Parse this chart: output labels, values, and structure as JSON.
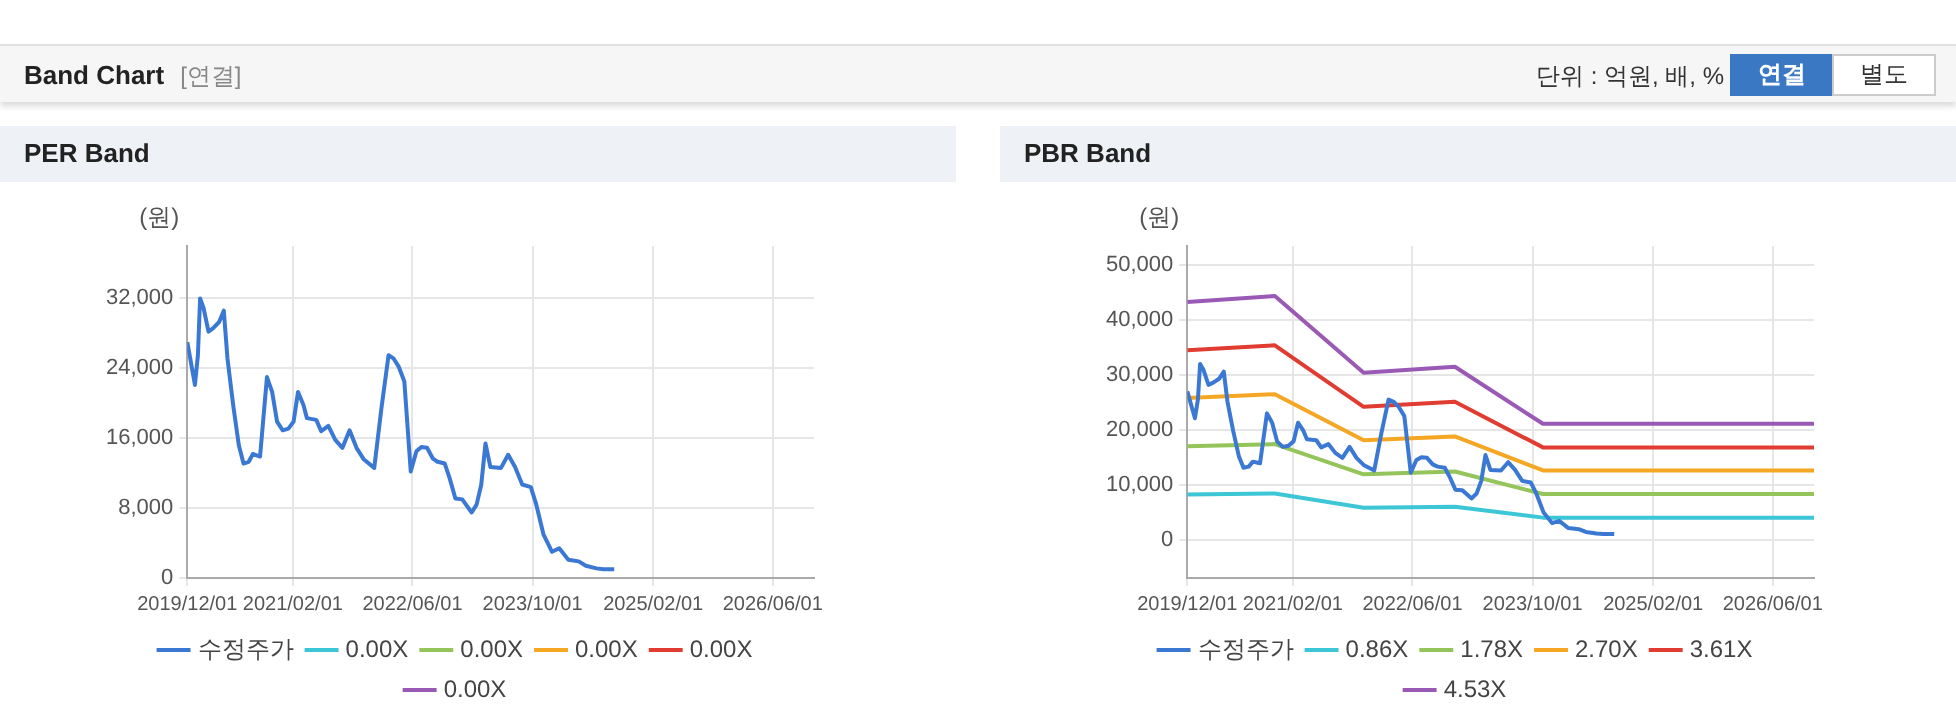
{
  "chart_data": [
    {
      "type": "other",
      "title": "Band Chart",
      "annotations": [
        "[연결]",
        "단위 : 억원, 배, %",
        "연결",
        "별도"
      ]
    },
    {
      "type": "line",
      "title": "PER Band",
      "ylabel": "(원)",
      "xlim": [
        "2019-12-01",
        "2026-11-15"
      ],
      "ylim": [
        0,
        38000
      ],
      "xticks": [
        {
          "value": "2019-12-01",
          "label": "2019/12/01"
        },
        {
          "value": "2021-02-01",
          "label": "2021/02/01"
        },
        {
          "value": "2022-06-01",
          "label": "2022/06/01"
        },
        {
          "value": "2023-10-01",
          "label": "2023/10/01"
        },
        {
          "value": "2025-02-01",
          "label": "2025/02/01"
        },
        {
          "value": "2026-06-01",
          "label": "2026/06/01"
        }
      ],
      "yticks": [
        0,
        {
          "value": 8000,
          "label": "8,000"
        },
        {
          "value": 16000,
          "label": "16,000"
        },
        {
          "value": 24000,
          "label": "24,000"
        },
        {
          "value": 32000,
          "label": "32,000"
        }
      ],
      "grid": true,
      "legend": "bottom",
      "marker": "none",
      "line_style": "solid",
      "x": [
        "2019-12-01",
        "2019-12-15",
        "2020-01-01",
        "2020-01-13",
        "2020-01-22",
        "2020-02-05",
        "2020-02-25",
        "2020-03-15",
        "2020-04-08",
        "2020-04-27",
        "2020-05-12",
        "2020-06-04",
        "2020-06-27",
        "2020-07-16",
        "2020-08-06",
        "2020-08-23",
        "2020-09-21",
        "2020-10-19",
        "2020-11-09",
        "2020-11-29",
        "2020-12-22",
        "2021-01-14",
        "2021-02-04",
        "2021-02-22",
        "2021-03-16",
        "2021-03-30",
        "2021-05-07",
        "2021-05-27",
        "2021-06-25",
        "2021-07-23",
        "2021-08-21",
        "2021-09-19",
        "2021-10-17",
        "2021-11-15",
        "2021-12-28",
        "2022-01-26",
        "2022-02-24",
        "2022-03-17",
        "2022-04-06",
        "2022-04-29",
        "2022-05-25",
        "2022-06-17",
        "2022-07-07",
        "2022-07-30",
        "2022-08-22",
        "2022-09-11",
        "2022-10-10",
        "2022-10-30",
        "2022-11-22",
        "2022-12-20",
        "2023-01-04",
        "2023-01-27",
        "2023-02-16",
        "2023-03-07",
        "2023-03-24",
        "2023-04-13",
        "2023-05-26",
        "2023-06-24",
        "2023-07-22",
        "2023-08-20",
        "2023-09-24",
        "2023-10-16",
        "2023-11-14",
        "2023-12-19",
        "2024-01-17",
        "2024-02-23",
        "2024-04-05",
        "2024-05-04",
        "2024-06-16",
        "2024-07-14",
        "2024-08-27"
      ],
      "series": [
        {
          "name": "수정주가",
          "color": "#3a78d4",
          "values": [
            27000,
            24800,
            22100,
            25500,
            32000,
            30900,
            28200,
            28600,
            29300,
            30600,
            25100,
            19800,
            15200,
            13100,
            13300,
            14200,
            13900,
            23000,
            21300,
            17900,
            16900,
            17100,
            17900,
            21300,
            19800,
            18300,
            18100,
            16800,
            17400,
            15800,
            14900,
            16900,
            14900,
            13600,
            12600,
            19400,
            25500,
            25100,
            24200,
            22500,
            12200,
            14500,
            15000,
            14900,
            13700,
            13300,
            13100,
            11400,
            9100,
            9000,
            8400,
            7500,
            8400,
            10700,
            15400,
            12700,
            12600,
            14100,
            12700,
            10700,
            10400,
            8400,
            5000,
            3000,
            3400,
            2100,
            1900,
            1400,
            1100,
            1000,
            1000
          ]
        },
        {
          "name": "0.00X",
          "color": "#3cc6d6",
          "values": [
            null,
            null,
            null,
            null,
            null,
            null,
            null,
            null,
            null,
            null,
            null,
            null,
            null,
            null,
            null,
            null,
            null,
            null,
            null,
            null,
            null,
            null,
            null,
            null,
            null,
            null,
            null,
            null,
            null,
            null,
            null,
            null,
            null,
            null,
            null,
            null,
            null,
            null,
            null,
            null,
            null,
            null,
            null,
            null,
            null,
            null,
            null,
            null,
            null,
            null,
            null,
            null,
            null,
            null,
            null,
            null,
            null,
            null,
            null,
            null,
            null,
            null,
            null,
            null,
            null,
            null,
            null,
            null,
            null,
            null,
            null
          ]
        },
        {
          "name": "0.00X",
          "color": "#94c45a",
          "values": [
            null,
            null,
            null,
            null,
            null,
            null,
            null,
            null,
            null,
            null,
            null,
            null,
            null,
            null,
            null,
            null,
            null,
            null,
            null,
            null,
            null,
            null,
            null,
            null,
            null,
            null,
            null,
            null,
            null,
            null,
            null,
            null,
            null,
            null,
            null,
            null,
            null,
            null,
            null,
            null,
            null,
            null,
            null,
            null,
            null,
            null,
            null,
            null,
            null,
            null,
            null,
            null,
            null,
            null,
            null,
            null,
            null,
            null,
            null,
            null,
            null,
            null,
            null,
            null,
            null,
            null,
            null,
            null,
            null,
            null,
            null
          ]
        },
        {
          "name": "0.00X",
          "color": "#f5a623",
          "values": [
            null,
            null,
            null,
            null,
            null,
            null,
            null,
            null,
            null,
            null,
            null,
            null,
            null,
            null,
            null,
            null,
            null,
            null,
            null,
            null,
            null,
            null,
            null,
            null,
            null,
            null,
            null,
            null,
            null,
            null,
            null,
            null,
            null,
            null,
            null,
            null,
            null,
            null,
            null,
            null,
            null,
            null,
            null,
            null,
            null,
            null,
            null,
            null,
            null,
            null,
            null,
            null,
            null,
            null,
            null,
            null,
            null,
            null,
            null,
            null,
            null,
            null,
            null,
            null,
            null,
            null,
            null,
            null,
            null,
            null,
            null
          ]
        },
        {
          "name": "0.00X",
          "color": "#e03c31",
          "values": [
            null,
            null,
            null,
            null,
            null,
            null,
            null,
            null,
            null,
            null,
            null,
            null,
            null,
            null,
            null,
            null,
            null,
            null,
            null,
            null,
            null,
            null,
            null,
            null,
            null,
            null,
            null,
            null,
            null,
            null,
            null,
            null,
            null,
            null,
            null,
            null,
            null,
            null,
            null,
            null,
            null,
            null,
            null,
            null,
            null,
            null,
            null,
            null,
            null,
            null,
            null,
            null,
            null,
            null,
            null,
            null,
            null,
            null,
            null,
            null,
            null,
            null,
            null,
            null,
            null,
            null,
            null,
            null,
            null,
            null,
            null
          ]
        },
        {
          "name": "0.00X",
          "color": "#9b59b6",
          "values": [
            null,
            null,
            null,
            null,
            null,
            null,
            null,
            null,
            null,
            null,
            null,
            null,
            null,
            null,
            null,
            null,
            null,
            null,
            null,
            null,
            null,
            null,
            null,
            null,
            null,
            null,
            null,
            null,
            null,
            null,
            null,
            null,
            null,
            null,
            null,
            null,
            null,
            null,
            null,
            null,
            null,
            null,
            null,
            null,
            null,
            null,
            null,
            null,
            null,
            null,
            null,
            null,
            null,
            null,
            null,
            null,
            null,
            null,
            null,
            null,
            null,
            null,
            null,
            null,
            null,
            null,
            null,
            null,
            null,
            null,
            null
          ]
        }
      ]
    },
    {
      "type": "line",
      "title": "PBR Band",
      "ylabel": "(원)",
      "xlim": [
        "2019-12-01",
        "2026-11-15"
      ],
      "ylim": [
        -7000,
        53500
      ],
      "xticks": [
        {
          "value": "2019-12-01",
          "label": "2019/12/01"
        },
        {
          "value": "2021-02-01",
          "label": "2021/02/01"
        },
        {
          "value": "2022-06-01",
          "label": "2022/06/01"
        },
        {
          "value": "2023-10-01",
          "label": "2023/10/01"
        },
        {
          "value": "2025-02-01",
          "label": "2025/02/01"
        },
        {
          "value": "2026-06-01",
          "label": "2026/06/01"
        }
      ],
      "yticks": [
        0,
        {
          "value": 10000,
          "label": "10,000"
        },
        {
          "value": 20000,
          "label": "20,000"
        },
        {
          "value": 30000,
          "label": "30,000"
        },
        {
          "value": 40000,
          "label": "40,000"
        },
        {
          "value": 50000,
          "label": "50,000"
        }
      ],
      "grid": true,
      "legend": "bottom",
      "marker": "none",
      "line_style": "solid",
      "x": [
        "2019-12-01",
        "2019-12-15",
        "2020-01-01",
        "2020-01-13",
        "2020-01-22",
        "2020-02-05",
        "2020-02-25",
        "2020-03-15",
        "2020-04-08",
        "2020-04-27",
        "2020-05-12",
        "2020-06-04",
        "2020-06-27",
        "2020-07-16",
        "2020-08-06",
        "2020-08-23",
        "2020-09-21",
        "2020-10-19",
        "2020-11-09",
        "2020-11-29",
        "2020-12-22",
        "2021-01-14",
        "2021-02-04",
        "2021-02-22",
        "2021-03-16",
        "2021-03-30",
        "2021-05-07",
        "2021-05-27",
        "2021-06-25",
        "2021-07-23",
        "2021-08-21",
        "2021-09-19",
        "2021-10-17",
        "2021-11-15",
        "2021-12-28",
        "2022-01-26",
        "2022-02-24",
        "2022-03-17",
        "2022-04-06",
        "2022-04-29",
        "2022-05-25",
        "2022-06-17",
        "2022-07-07",
        "2022-07-30",
        "2022-08-22",
        "2022-09-11",
        "2022-10-10",
        "2022-10-30",
        "2022-11-22",
        "2022-12-20",
        "2023-01-04",
        "2023-01-27",
        "2023-02-16",
        "2023-03-07",
        "2023-03-24",
        "2023-04-13",
        "2023-05-26",
        "2023-06-24",
        "2023-07-22",
        "2023-08-20",
        "2023-09-24",
        "2023-10-16",
        "2023-11-14",
        "2023-12-19",
        "2024-01-17",
        "2024-02-23",
        "2024-04-05",
        "2024-05-04",
        "2024-06-16",
        "2024-07-14",
        "2024-08-27"
      ],
      "series": [
        {
          "name": "수정주가",
          "color": "#3a78d4",
          "values": [
            27000,
            24800,
            22100,
            25500,
            32000,
            30900,
            28200,
            28600,
            29300,
            30600,
            25100,
            19800,
            15200,
            13100,
            13300,
            14200,
            13900,
            23000,
            21300,
            17900,
            16900,
            17100,
            17900,
            21300,
            19800,
            18300,
            18100,
            16800,
            17400,
            15800,
            14900,
            16900,
            14900,
            13600,
            12600,
            19400,
            25500,
            25100,
            24200,
            22500,
            12200,
            14500,
            15000,
            14900,
            13700,
            13300,
            13100,
            11400,
            9100,
            9000,
            8400,
            7500,
            8400,
            10700,
            15400,
            12700,
            12600,
            14100,
            12700,
            10700,
            10400,
            8400,
            5000,
            3000,
            3400,
            2100,
            1900,
            1400,
            1100,
            1000,
            1000
          ]
        },
        {
          "name": "0.86X",
          "color": "#3cc6d6",
          "x": [
            "2019-12-01",
            "2020-11-20",
            "2021-11-15",
            "2022-11-20",
            "2023-11-12",
            "2026-11-15"
          ],
          "values": [
            8200,
            8400,
            5800,
            6000,
            4000,
            4000
          ]
        },
        {
          "name": "1.78X",
          "color": "#94c45a",
          "x": [
            "2019-12-01",
            "2020-11-20",
            "2021-11-15",
            "2022-11-20",
            "2023-11-12",
            "2026-11-15"
          ],
          "values": [
            17000,
            17400,
            11900,
            12400,
            8300,
            8300
          ]
        },
        {
          "name": "2.70X",
          "color": "#f5a623",
          "x": [
            "2019-12-01",
            "2020-11-20",
            "2021-11-15",
            "2022-11-20",
            "2023-11-12",
            "2026-11-15"
          ],
          "values": [
            25800,
            26500,
            18100,
            18800,
            12600,
            12600
          ]
        },
        {
          "name": "3.61X",
          "color": "#e03c31",
          "x": [
            "2019-12-01",
            "2020-11-20",
            "2021-11-15",
            "2022-11-20",
            "2023-11-12",
            "2026-11-15"
          ],
          "values": [
            34500,
            35400,
            24200,
            25100,
            16800,
            16800
          ]
        },
        {
          "name": "4.53X",
          "color": "#9b59b6",
          "x": [
            "2019-12-01",
            "2020-11-20",
            "2021-11-15",
            "2022-11-20",
            "2023-11-12",
            "2026-11-15"
          ],
          "values": [
            43300,
            44400,
            30400,
            31500,
            21100,
            21100
          ]
        }
      ]
    }
  ]
}
